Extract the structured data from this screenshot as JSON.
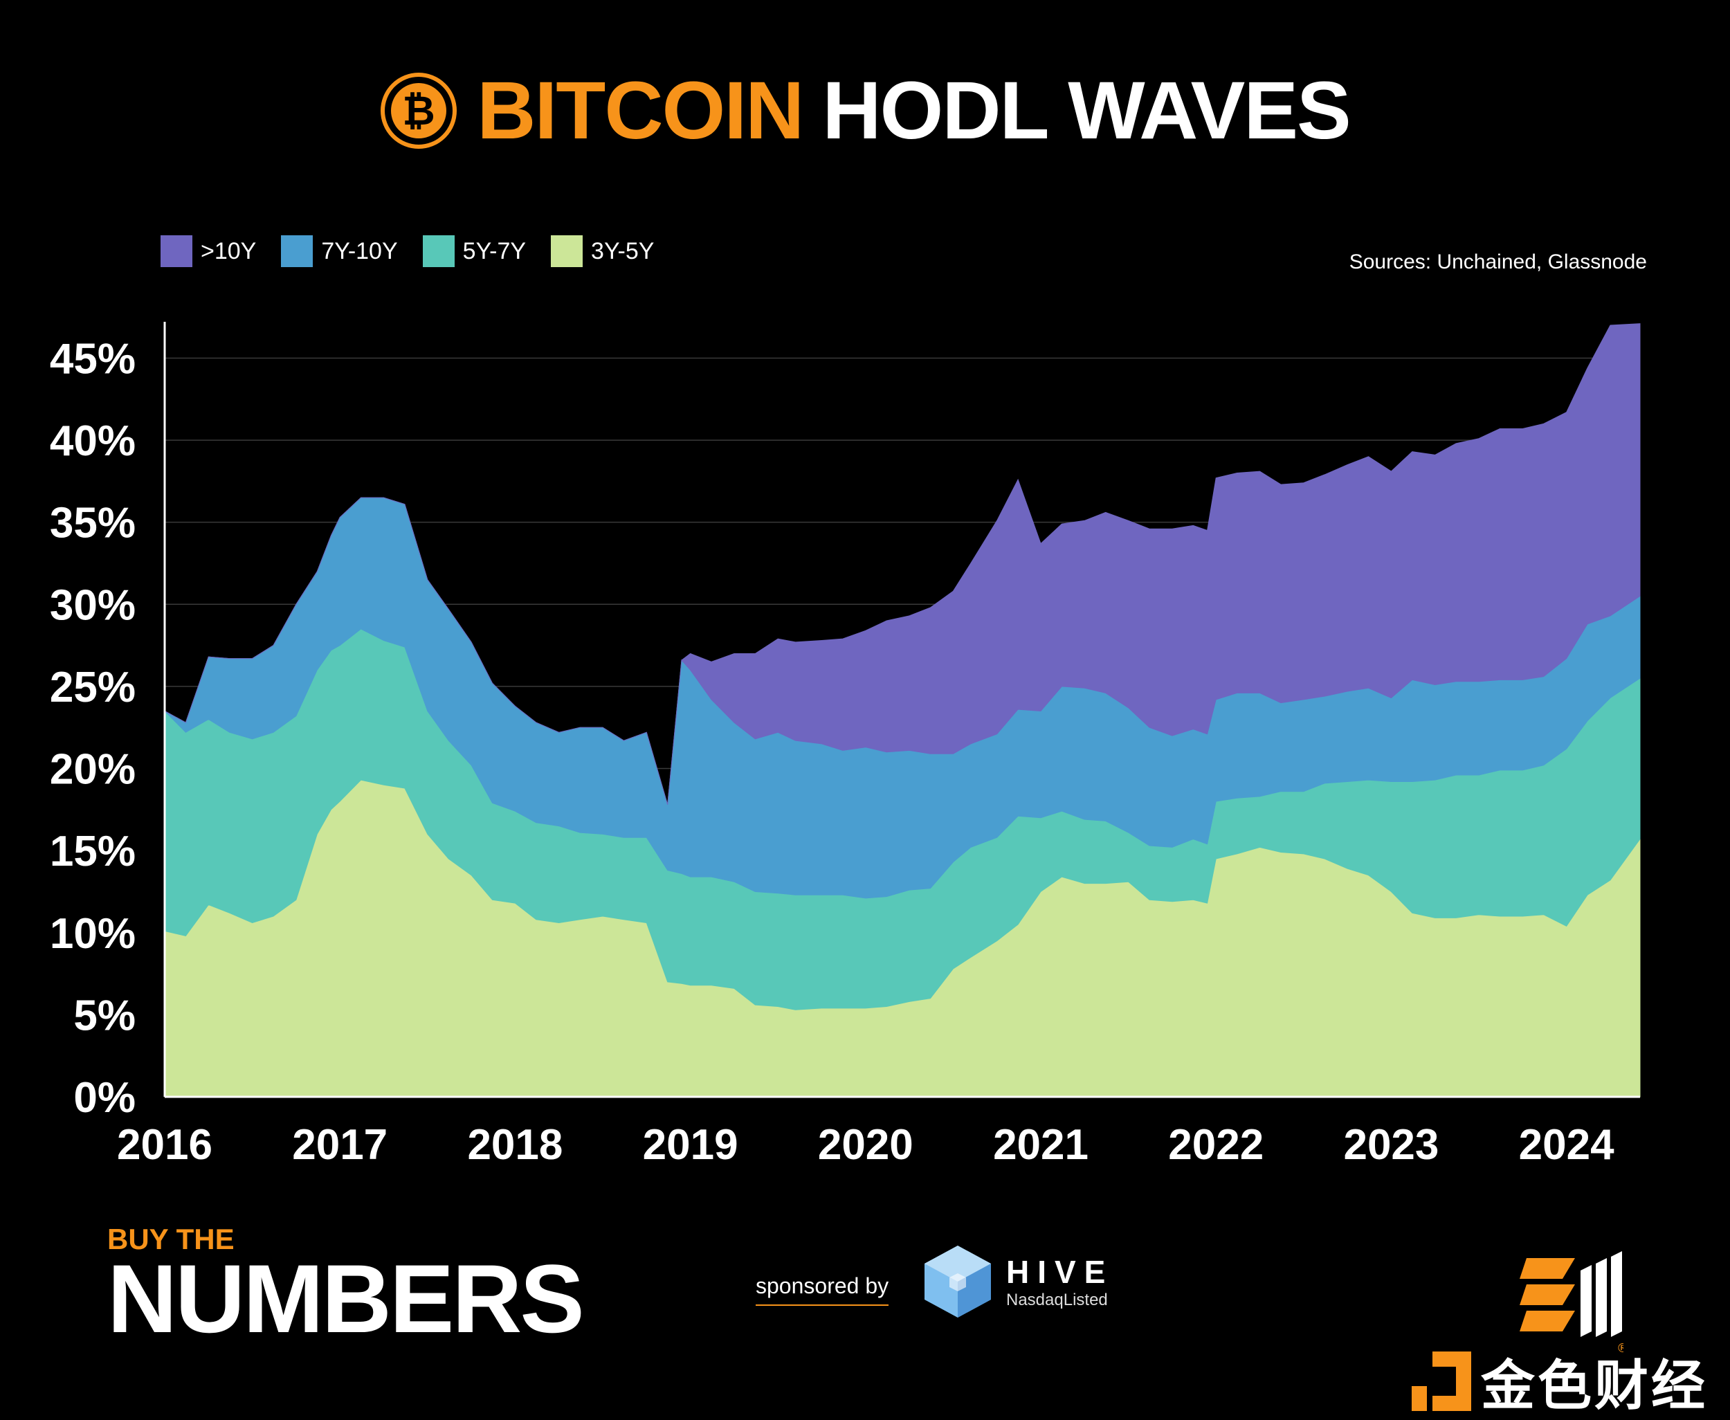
{
  "header": {
    "title_part1": "BITCOIN",
    "title_part2": "HODL WAVES"
  },
  "sources": "Sources: Unchained, Glassnode",
  "colors": {
    "bg": "#000000",
    "accent": "#F7931A",
    "gt10y": "#6F66C0",
    "y7_10": "#4A9ED0",
    "y5_7": "#58C8B8",
    "y3_5": "#CCE698"
  },
  "chart_data": {
    "type": "area",
    "title": "BITCOIN HODL WAVES",
    "stacked": true,
    "xlabel": "",
    "ylabel": "",
    "x_ticks": [
      "2016",
      "2017",
      "2018",
      "2019",
      "2020",
      "2021",
      "2022",
      "2023",
      "2024"
    ],
    "y_ticks": [
      "0%",
      "5%",
      "10%",
      "15%",
      "20%",
      "25%",
      "30%",
      "35%",
      "40%",
      "45%"
    ],
    "xlim": [
      2016.0,
      2024.42
    ],
    "ylim": [
      0,
      47
    ],
    "legend": [
      "&gt;10Y",
      "7Y-10Y",
      "5Y-7Y",
      "3Y-5Y"
    ],
    "legend_labels": [
      ">10Y",
      "7Y-10Y",
      "5Y-7Y",
      "3Y-5Y"
    ],
    "legend_position": "top-left",
    "x": [
      2016.0,
      2016.12,
      2016.25,
      2016.37,
      2016.5,
      2016.62,
      2016.75,
      2016.87,
      2016.95,
      2017.0,
      2017.12,
      2017.25,
      2017.37,
      2017.5,
      2017.62,
      2017.75,
      2017.87,
      2018.0,
      2018.12,
      2018.25,
      2018.37,
      2018.5,
      2018.62,
      2018.75,
      2018.87,
      2018.95,
      2019.0,
      2019.12,
      2019.25,
      2019.37,
      2019.5,
      2019.6,
      2019.75,
      2019.87,
      2020.0,
      2020.12,
      2020.25,
      2020.37,
      2020.5,
      2020.6,
      2020.75,
      2020.87,
      2021.0,
      2021.12,
      2021.25,
      2021.37,
      2021.5,
      2021.62,
      2021.75,
      2021.87,
      2021.95,
      2022.0,
      2022.12,
      2022.25,
      2022.37,
      2022.5,
      2022.62,
      2022.75,
      2022.87,
      2023.0,
      2023.12,
      2023.25,
      2023.37,
      2023.5,
      2023.62,
      2023.75,
      2023.87,
      2024.0,
      2024.12,
      2024.25,
      2024.42
    ],
    "series": [
      {
        "name": "3Y-5Y",
        "values": [
          10.1,
          9.8,
          11.7,
          11.2,
          10.6,
          11.0,
          12.0,
          16.0,
          17.5,
          18.0,
          19.3,
          19.0,
          18.8,
          16.0,
          14.5,
          13.5,
          12.0,
          11.8,
          10.8,
          10.6,
          10.8,
          11.0,
          10.8,
          10.6,
          7.0,
          6.9,
          6.8,
          6.8,
          6.6,
          5.6,
          5.5,
          5.3,
          5.4,
          5.4,
          5.4,
          5.5,
          5.8,
          6.0,
          7.8,
          8.5,
          9.5,
          10.5,
          12.5,
          13.4,
          13.0,
          13.0,
          13.1,
          12.0,
          11.9,
          12.0,
          11.8,
          14.5,
          14.8,
          15.2,
          14.9,
          14.8,
          14.5,
          13.9,
          13.5,
          12.5,
          11.2,
          10.9,
          10.9,
          11.1,
          11.0,
          11.0,
          11.1,
          10.4,
          12.3,
          13.2,
          15.7
        ]
      },
      {
        "name": "5Y-7Y",
        "values": [
          13.4,
          12.4,
          11.3,
          11.0,
          11.2,
          11.2,
          11.2,
          10.0,
          9.7,
          9.5,
          9.2,
          8.8,
          8.6,
          7.5,
          7.2,
          6.7,
          5.9,
          5.6,
          5.9,
          5.9,
          5.3,
          5.0,
          5.0,
          5.2,
          6.8,
          6.7,
          6.6,
          6.6,
          6.5,
          6.9,
          6.9,
          7.0,
          6.9,
          6.9,
          6.7,
          6.7,
          6.8,
          6.7,
          6.5,
          6.7,
          6.3,
          6.6,
          4.5,
          4.0,
          3.9,
          3.8,
          3.0,
          3.3,
          3.3,
          3.7,
          3.6,
          3.5,
          3.4,
          3.1,
          3.7,
          3.8,
          4.6,
          5.3,
          5.8,
          6.7,
          8.0,
          8.4,
          8.7,
          8.5,
          8.9,
          8.9,
          9.1,
          10.8,
          10.6,
          11.1,
          9.8
        ]
      },
      {
        "name": "7Y-10Y",
        "values": [
          0.0,
          0.6,
          3.8,
          4.5,
          4.9,
          5.3,
          6.8,
          6.0,
          7.0,
          7.8,
          8.0,
          8.7,
          8.7,
          8.0,
          8.0,
          7.5,
          7.3,
          6.4,
          6.1,
          5.7,
          6.4,
          6.5,
          5.9,
          6.4,
          4.0,
          13.0,
          12.6,
          10.8,
          9.7,
          9.3,
          9.8,
          9.4,
          9.2,
          8.8,
          9.2,
          8.8,
          8.5,
          8.2,
          6.6,
          6.3,
          6.3,
          6.5,
          6.5,
          7.6,
          8.0,
          7.8,
          7.6,
          7.2,
          6.8,
          6.7,
          6.7,
          6.2,
          6.4,
          6.3,
          5.4,
          5.6,
          5.3,
          5.5,
          5.6,
          5.1,
          6.2,
          5.8,
          5.7,
          5.7,
          5.5,
          5.5,
          5.4,
          5.5,
          5.9,
          5.0,
          5.0
        ]
      },
      {
        "name": ">10Y",
        "values": [
          0,
          0,
          0,
          0,
          0,
          0,
          0,
          0,
          0,
          0,
          0,
          0,
          0,
          0,
          0,
          0,
          0,
          0,
          0,
          0,
          0,
          0,
          0,
          0,
          0,
          0,
          1.0,
          2.3,
          4.2,
          5.2,
          5.7,
          6.0,
          6.3,
          6.8,
          7.1,
          8.0,
          8.2,
          8.9,
          9.9,
          11.0,
          13.0,
          14.0,
          10.2,
          9.9,
          10.2,
          11.0,
          11.4,
          12.1,
          12.6,
          12.4,
          12.4,
          13.5,
          13.4,
          13.5,
          13.3,
          13.2,
          13.5,
          13.8,
          14.1,
          13.8,
          13.9,
          14.0,
          14.5,
          14.8,
          15.3,
          15.3,
          15.4,
          15.0,
          15.6,
          17.7,
          16.6
        ]
      }
    ]
  },
  "footer": {
    "buy_the": "BUY THE",
    "numbers": "NUMBERS",
    "sponsored": "sponsored by",
    "hive_name": "HIVE",
    "hive_sub": "NasdaqListed",
    "watermark": "金色财经"
  }
}
